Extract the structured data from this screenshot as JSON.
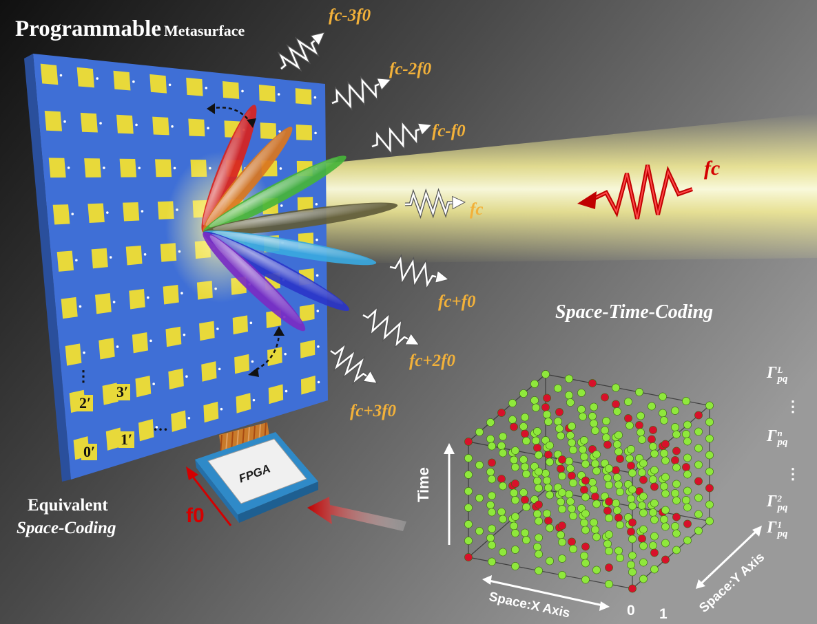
{
  "title": {
    "bold": "Programmable",
    "rest": "Metasurface"
  },
  "harmonics": [
    "fc-3f0",
    "fc-2f0",
    "fc-f0",
    "fc",
    "fc+f0",
    "fc+2f0",
    "fc+3f0"
  ],
  "incident_label": "fc",
  "modulation_label": "f0",
  "fpga_label": "FPGA",
  "element_labels": [
    "0′",
    "1′",
    "2′",
    "3′",
    "…",
    "⋮"
  ],
  "equivalent_label": {
    "line1": "Equivalent",
    "line2": "Space-Coding"
  },
  "stc_title": "Space-Time-Coding",
  "axes": {
    "time": "Time",
    "x": "Space:X Axis",
    "y": "Space:Y Axis",
    "origin": "0",
    "one": "1"
  },
  "coefficients": [
    "Γ_pq^L",
    "⋮",
    "Γ_pq^n",
    "⋮",
    "Γ_pq^2",
    "Γ_pq^1"
  ],
  "colors": {
    "panel": "#3f6fd6",
    "patch": "#e8d93a",
    "beam": "#fff79a",
    "orange_text": "#f2b13a",
    "red": "#d40000",
    "green_dot": "#8fe83c",
    "red_dot": "#d8102a"
  },
  "lobe_colors": [
    "#d8221e",
    "#d9761f",
    "#46b43a",
    "#5f5b3a",
    "#3aa8df",
    "#2a35c9",
    "#7a2bc3"
  ]
}
